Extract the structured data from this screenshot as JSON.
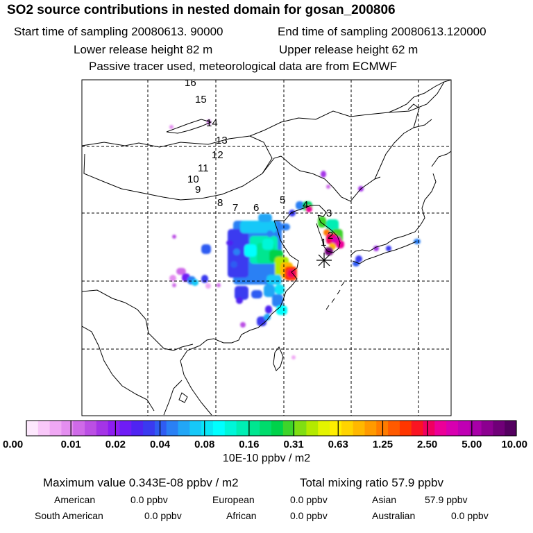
{
  "header": {
    "title": "SO2 source contributions in nested domain for gosan_200806",
    "start_time": "Start time of sampling 20080613. 90000",
    "end_time": "End time of sampling 20080613.120000",
    "lower_release": "Lower release height   82 m",
    "upper_release": "Upper release height   62 m",
    "passive_tracer": "Passive tracer used, meteorological data are from ECMWF"
  },
  "map": {
    "trajectory_labels": [
      "16",
      "15",
      "14",
      "13",
      "12",
      "11",
      "10",
      "9",
      "8",
      "7",
      "6",
      "5",
      "4",
      "3",
      "2",
      "1"
    ],
    "receptor_marker": "asterisk-receptor"
  },
  "colorbar": {
    "tick_labels": [
      "0.00",
      "0.01",
      "0.02",
      "0.04",
      "0.08",
      "0.16",
      "0.31",
      "0.63",
      "1.25",
      "2.50",
      "5.00",
      "10.00"
    ],
    "unit": "10E-10 ppbv / m2",
    "colors": [
      "#fde8fd",
      "#f9c8f9",
      "#f0a8f4",
      "#e48ef0",
      "#cf6ae8",
      "#bb4fe4",
      "#a434e6",
      "#8d1df0",
      "#6f1cf6",
      "#4f24f2",
      "#3a3af0",
      "#2f5cf2",
      "#2a80f4",
      "#22a6f6",
      "#16c8f8",
      "#08e6f6",
      "#00ffff",
      "#00f6d8",
      "#00eeb4",
      "#00e690",
      "#00dc6c",
      "#00d24a",
      "#3ed42a",
      "#80de12",
      "#b4ea00",
      "#e4f400",
      "#ffee00",
      "#ffd400",
      "#ffb800",
      "#ff9a00",
      "#ff7c00",
      "#ff5a00",
      "#ff3600",
      "#fa1422",
      "#f00060",
      "#ec0098",
      "#d800b0",
      "#c000b4",
      "#a800a8",
      "#8c0090",
      "#700078",
      "#540060"
    ]
  },
  "stats": {
    "max_value": "Maximum value  0.343E-08 ppbv / m2",
    "total_mixing": "Total mixing ratio      57.9 ppbv",
    "regions": [
      {
        "name": "American",
        "value": "0.0 ppbv"
      },
      {
        "name": "European",
        "value": "0.0 ppbv"
      },
      {
        "name": "Asian",
        "value": "57.9 ppbv"
      },
      {
        "name": "South American",
        "value": "0.0 ppbv"
      },
      {
        "name": "African",
        "value": "0.0 ppbv"
      },
      {
        "name": "Australian",
        "value": "0.0 ppbv"
      }
    ]
  }
}
